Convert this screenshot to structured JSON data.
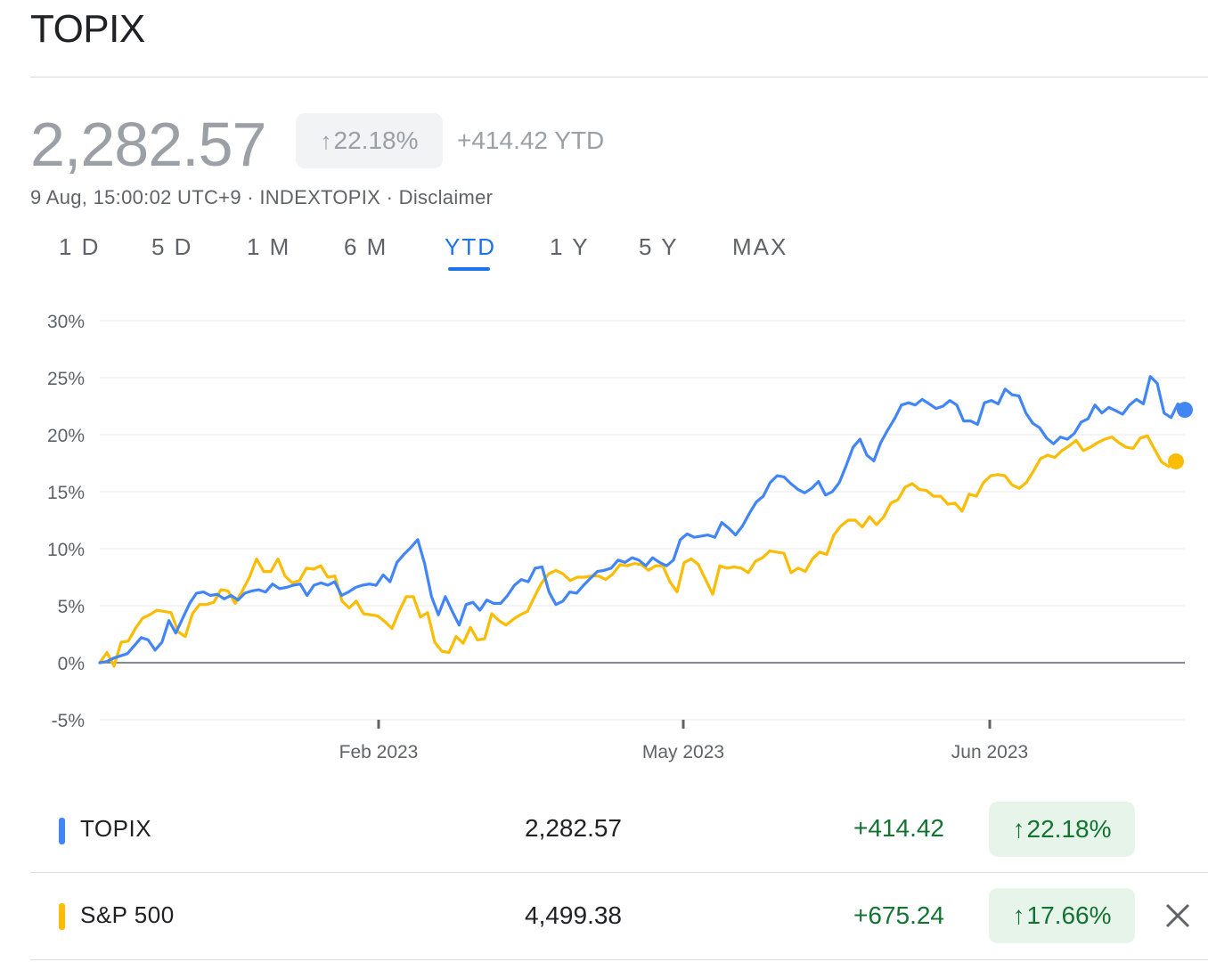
{
  "header": {
    "title": "TOPIX",
    "price": "2,282.57",
    "pct_change": "22.18%",
    "abs_change": "+414.42 YTD",
    "meta_time": "9 Aug, 15:00:02 UTC+9",
    "meta_sep1": " · ",
    "meta_symbol": "INDEXTOPIX",
    "meta_sep2": " · ",
    "meta_disclaimer": "Disclaimer"
  },
  "tabs": [
    {
      "label": "1 D"
    },
    {
      "label": "5 D"
    },
    {
      "label": "1 M"
    },
    {
      "label": "6 M"
    },
    {
      "label": "YTD"
    },
    {
      "label": "1 Y"
    },
    {
      "label": "5 Y"
    },
    {
      "label": "MAX"
    }
  ],
  "active_tab": "YTD",
  "colors": {
    "topix": "#4285f4",
    "sp500": "#fbbc04",
    "active": "#1a73e8",
    "positive": "#137333"
  },
  "chart_data": {
    "type": "line",
    "ylim": [
      -5,
      30
    ],
    "yticks": [
      "30%",
      "25%",
      "20%",
      "15%",
      "10%",
      "5%",
      "0%",
      "-5%"
    ],
    "xticks": [
      "Feb 2023",
      "May 2023",
      "Jun 2023"
    ],
    "grid": true,
    "series": [
      {
        "name": "TOPIX",
        "values": [
          0,
          0.1,
          0.4,
          0.6,
          0.8,
          1.5,
          2.2,
          2.0,
          1.1,
          1.8,
          3.7,
          2.6,
          3.9,
          5.2,
          6.1,
          6.2,
          5.9,
          6.0,
          5.6,
          5.9,
          5.5,
          6.1,
          6.3,
          6.4,
          6.2,
          6.9,
          6.5,
          6.6,
          6.8,
          6.9,
          5.9,
          6.8,
          7.0,
          6.8,
          7.1,
          5.9,
          6.2,
          6.6,
          6.8,
          6.9,
          6.8,
          7.7,
          7.1,
          8.8,
          9.5,
          10.1,
          10.8,
          8.7,
          5.8,
          4.2,
          5.8,
          4.5,
          3.3,
          5.1,
          5.3,
          4.6,
          5.5,
          5.2,
          5.2,
          5.9,
          6.8,
          7.3,
          7.1,
          8.3,
          8.4,
          6.2,
          5.1,
          5.4,
          6.2,
          6.1,
          6.8,
          7.4,
          8.0,
          8.1,
          8.3,
          9.0,
          8.8,
          9.2,
          9.0,
          8.5,
          9.2,
          8.8,
          8.5,
          9.0,
          10.8,
          11.3,
          11.0,
          11.1,
          11.2,
          11.0,
          12.3,
          11.8,
          11.2,
          12.0,
          13.1,
          14.1,
          14.6,
          15.8,
          16.4,
          16.3,
          15.7,
          15.2,
          14.9,
          15.3,
          15.9,
          14.7,
          15.0,
          15.8,
          17.3,
          18.9,
          19.6,
          18.2,
          17.7,
          19.3,
          20.4,
          21.4,
          22.6,
          22.8,
          22.6,
          23.1,
          22.7,
          22.3,
          22.5,
          23.0,
          22.6,
          21.2,
          21.2,
          20.9,
          22.8,
          23.0,
          22.7,
          24.0,
          23.5,
          23.4,
          21.9,
          21.0,
          20.6,
          19.7,
          19.2,
          19.8,
          19.6,
          20.1,
          21.1,
          21.4,
          22.6,
          21.9,
          22.4,
          22.1,
          21.8,
          22.6,
          23.1,
          22.7,
          25.1,
          24.5,
          21.9,
          21.5,
          22.7,
          22.18
        ]
      },
      {
        "name": "S&P 500",
        "values": [
          0,
          0.9,
          -0.3,
          1.8,
          1.9,
          3.0,
          3.9,
          4.2,
          4.6,
          4.5,
          4.4,
          2.7,
          2.3,
          4.3,
          5.1,
          5.1,
          5.3,
          6.4,
          6.3,
          5.2,
          6.3,
          7.5,
          9.1,
          8.0,
          8.0,
          9.1,
          7.6,
          7.0,
          7.2,
          8.3,
          8.2,
          8.5,
          7.5,
          7.6,
          5.4,
          4.8,
          5.4,
          4.3,
          4.2,
          4.1,
          3.6,
          3.0,
          4.5,
          5.8,
          5.8,
          4.0,
          4.4,
          1.8,
          1.0,
          0.9,
          2.3,
          1.7,
          3.1,
          2.0,
          2.1,
          4.3,
          3.7,
          3.3,
          3.8,
          4.2,
          4.5,
          5.8,
          7.0,
          7.8,
          8.1,
          7.8,
          7.2,
          7.5,
          7.5,
          7.6,
          7.6,
          7.3,
          7.8,
          8.6,
          8.5,
          8.7,
          8.6,
          8.1,
          8.5,
          8.5,
          7.1,
          6.2,
          8.8,
          9.1,
          8.6,
          7.3,
          6.0,
          8.5,
          8.3,
          8.4,
          8.3,
          7.9,
          8.9,
          9.2,
          9.8,
          9.7,
          9.6,
          7.9,
          8.3,
          8.0,
          9.1,
          9.7,
          9.5,
          11.2,
          12.0,
          12.5,
          12.5,
          11.9,
          12.8,
          12.1,
          12.8,
          14.0,
          14.3,
          15.4,
          15.7,
          15.2,
          15.1,
          14.6,
          14.6,
          13.9,
          14.0,
          13.3,
          14.8,
          14.6,
          15.8,
          16.4,
          16.5,
          16.4,
          15.6,
          15.3,
          15.8,
          16.8,
          17.9,
          18.2,
          18.0,
          18.6,
          19.0,
          19.5,
          18.6,
          18.9,
          19.3,
          19.6,
          19.8,
          19.3,
          18.9,
          18.8,
          19.7,
          19.9,
          18.7,
          17.6,
          17.2,
          17.66
        ]
      }
    ]
  },
  "table": [
    {
      "name": "TOPIX",
      "value": "2,282.57",
      "change": "+414.42",
      "pct": "22.18%"
    },
    {
      "name": "S&P 500",
      "value": "4,499.38",
      "change": "+675.24",
      "pct": "17.66%"
    }
  ],
  "icons": {
    "arrow_up": "↑",
    "close": "close-icon"
  }
}
